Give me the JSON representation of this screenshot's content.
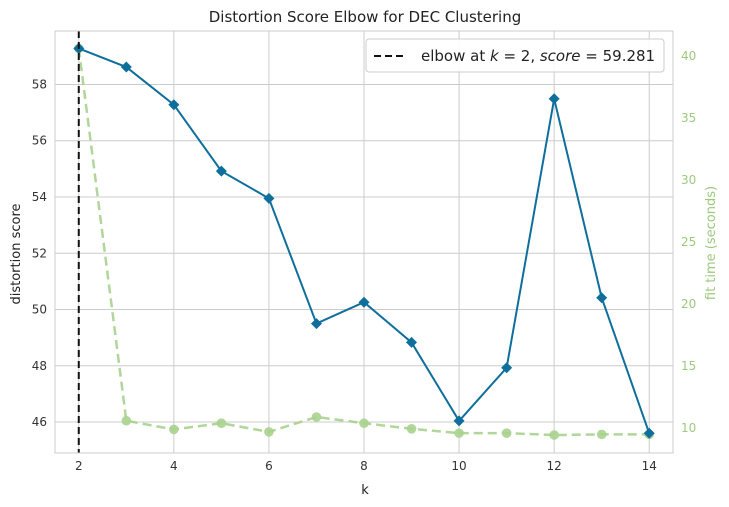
{
  "chart_data": {
    "type": "line",
    "title": "Distortion Score Elbow for DEC Clustering",
    "xlabel": "k",
    "ylabel": "distortion score",
    "y2label": "fit time (seconds)",
    "xlim": [
      1.5,
      14.5
    ],
    "ylim": [
      44.9,
      59.9
    ],
    "y2lim": [
      8.0,
      42.0
    ],
    "xticks": [
      2,
      4,
      6,
      8,
      10,
      12,
      14
    ],
    "yticks": [
      46,
      48,
      50,
      52,
      54,
      56,
      58
    ],
    "y2ticks": [
      10,
      15,
      20,
      25,
      30,
      35,
      40
    ],
    "grid": true,
    "x": [
      2,
      3,
      4,
      5,
      6,
      7,
      8,
      9,
      10,
      11,
      12,
      13,
      14
    ],
    "series": [
      {
        "name": "distortion score",
        "axis": "left",
        "color": "#0f6f9c",
        "marker": "diamond",
        "values": [
          59.28,
          58.62,
          57.28,
          54.92,
          53.95,
          49.5,
          50.26,
          48.83,
          46.04,
          47.93,
          57.49,
          50.42,
          45.6
        ]
      },
      {
        "name": "fit time (seconds)",
        "axis": "right",
        "color": "#a9d18e",
        "marker": "circle",
        "linestyle": "dashed",
        "values": [
          40.6,
          10.6,
          9.9,
          10.4,
          9.7,
          10.9,
          10.4,
          9.95,
          9.6,
          9.6,
          9.45,
          9.5,
          9.5
        ]
      }
    ],
    "elbow": {
      "k": 2,
      "label_text": "elbow at ",
      "label_k": "k",
      "label_eq": " = 2, ",
      "label_score": "score",
      "label_value": " = 59.281"
    },
    "legend_position": "top-right"
  }
}
